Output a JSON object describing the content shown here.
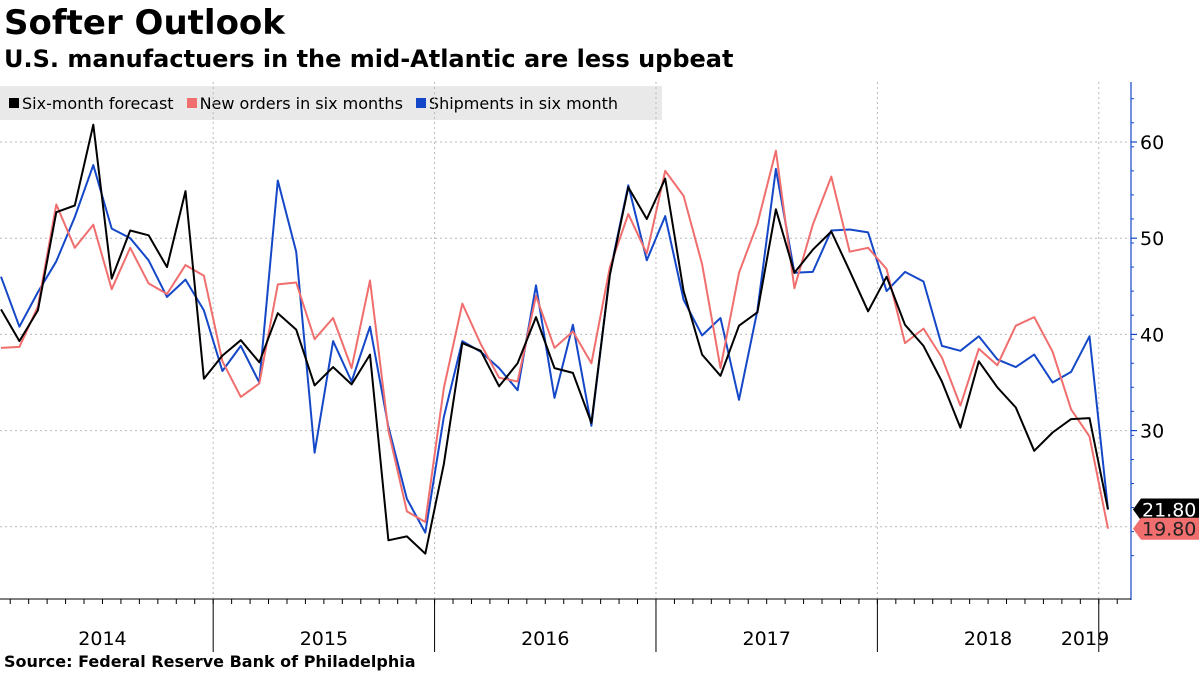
{
  "title": "Softer Outlook",
  "subtitle": "U.S. manufactuers in the mid-Atlantic are less upbeat",
  "source": "Source: Federal Reserve Bank of Philadelphia",
  "chart_data": {
    "type": "line",
    "x_start": "2014-01",
    "x_end": "2019-03",
    "years": [
      "2014",
      "2015",
      "2016",
      "2017",
      "2018",
      "2019"
    ],
    "yticks": [
      30,
      40,
      50,
      60
    ],
    "ylim": [
      15,
      67
    ],
    "grid": true,
    "legend_position": "top-left",
    "series": [
      {
        "name": "Six-month forecast",
        "color": "#000000",
        "values": [
          42.6,
          39.3,
          42.5,
          52.7,
          53.4,
          61.8,
          45.8,
          50.8,
          50.3,
          47.0,
          54.9,
          35.4,
          37.8,
          39.4,
          37.1,
          42.2,
          40.5,
          34.7,
          36.6,
          34.8,
          37.9,
          18.6,
          19.0,
          17.2,
          26.5,
          39.1,
          38.3,
          34.6,
          37.0,
          41.8,
          36.5,
          36.0,
          30.8,
          46.2,
          55.3,
          52.0,
          56.2,
          44.5,
          37.9,
          35.7,
          40.9,
          42.3,
          53.0,
          46.4,
          48.8,
          50.7,
          46.6,
          42.4,
          46.0,
          41.0,
          38.8,
          35.1,
          30.3,
          37.2,
          34.5,
          32.4,
          27.9,
          29.8,
          31.2,
          31.3,
          21.8
        ]
      },
      {
        "name": "New orders in six months",
        "color": "#f06e6e",
        "values": [
          38.6,
          38.7,
          42.9,
          53.5,
          49.0,
          51.4,
          44.7,
          49.0,
          45.3,
          44.2,
          47.2,
          46.1,
          37.2,
          33.5,
          34.9,
          45.2,
          45.4,
          39.5,
          41.7,
          36.5,
          45.6,
          30.0,
          21.6,
          20.5,
          34.4,
          43.2,
          39.0,
          35.5,
          35.1,
          44.0,
          38.6,
          40.3,
          37.0,
          47.0,
          52.5,
          48.4,
          57.0,
          54.4,
          47.3,
          36.5,
          46.4,
          51.5,
          59.1,
          44.8,
          51.4,
          56.4,
          48.6,
          49.0,
          46.8,
          39.1,
          40.6,
          37.6,
          32.6,
          38.5,
          36.8,
          40.9,
          41.8,
          38.2,
          32.2,
          29.4,
          19.8
        ]
      },
      {
        "name": "Shipments in six month",
        "color": "#1448c8",
        "values": [
          46.0,
          40.8,
          44.4,
          47.6,
          52.2,
          57.6,
          51.0,
          50.0,
          47.7,
          43.9,
          45.7,
          42.5,
          36.2,
          38.8,
          35.0,
          56.0,
          48.6,
          27.7,
          39.3,
          35.1,
          40.8,
          30.4,
          22.9,
          19.4,
          31.4,
          39.3,
          38.2,
          36.5,
          34.2,
          45.1,
          33.4,
          41.0,
          30.5,
          46.4,
          55.5,
          47.7,
          52.3,
          43.6,
          39.9,
          41.7,
          33.2,
          42.5,
          57.2,
          46.4,
          46.5,
          50.8,
          50.9,
          50.6,
          44.5,
          46.5,
          45.5,
          38.8,
          38.3,
          39.8,
          37.4,
          36.6,
          37.9,
          35.0,
          36.1,
          39.8,
          21.8
        ]
      }
    ],
    "last_value_labels": [
      {
        "text": "21.80",
        "series": "Six-month forecast",
        "color": "#000000"
      },
      {
        "text": "19.80",
        "series": "New orders in six months",
        "color": "#f06e6e"
      }
    ]
  }
}
